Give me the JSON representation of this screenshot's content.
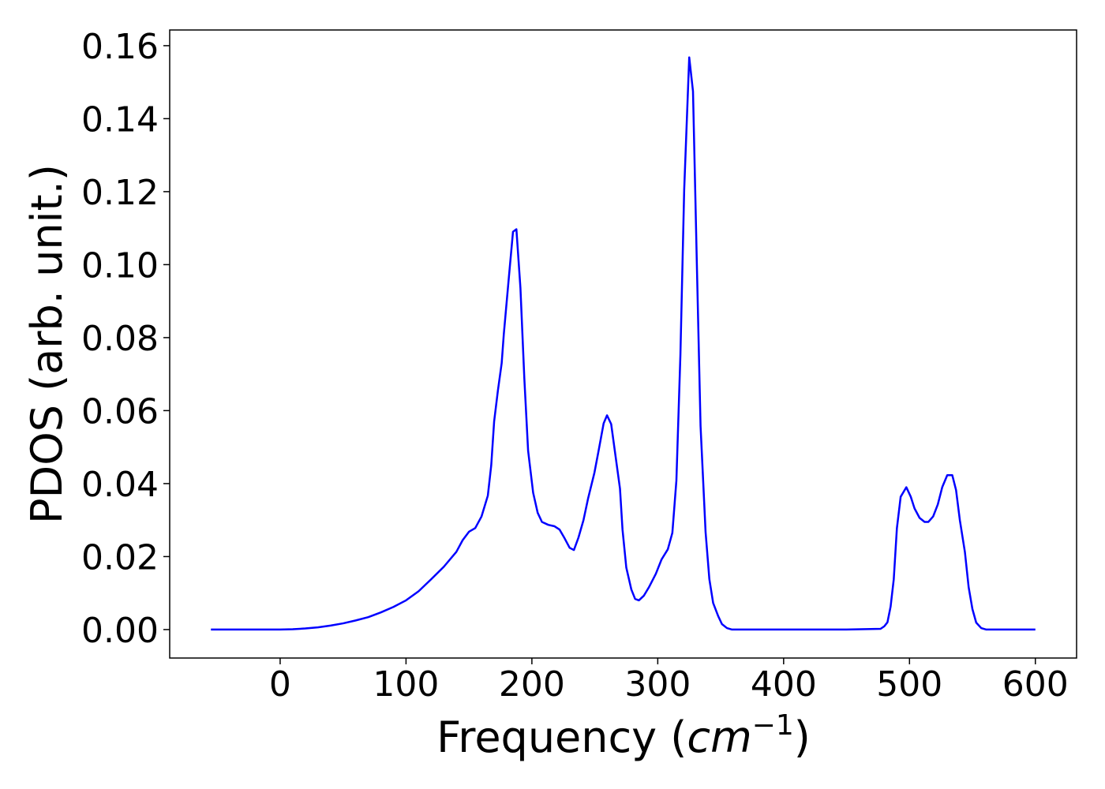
{
  "chart_data": {
    "type": "line",
    "xlabel": [
      "Frequency (",
      "cm",
      "−1",
      ")"
    ],
    "ylabel": "PDOS (arb. unit.)",
    "series": [
      {
        "name": "PDOS",
        "color": "#0000ff",
        "x": [
          -55,
          0,
          10,
          20,
          30,
          40,
          50,
          60,
          70,
          80,
          90,
          100,
          110,
          120,
          130,
          140,
          145,
          150,
          155,
          160,
          165,
          167.7,
          170,
          173,
          176,
          177.7,
          181.5,
          185,
          187.7,
          190.9,
          194,
          197,
          201,
          204.6,
          208,
          213,
          218,
          222,
          226,
          230,
          233.4,
          237,
          241,
          244.7,
          249.7,
          253,
          257,
          259.7,
          263,
          266,
          270,
          272,
          275,
          279,
          282,
          285,
          289,
          293,
          298.5,
          303,
          308,
          311.6,
          314.8,
          318,
          321,
          325,
          328,
          331,
          334,
          338,
          341,
          344,
          348,
          351,
          355,
          359,
          400,
          450,
          477,
          480,
          482.5,
          485,
          487.5,
          490,
          493,
          497.5,
          501,
          504,
          508,
          512,
          515,
          518.8,
          522.5,
          526,
          530,
          534,
          537,
          540,
          544,
          547,
          550,
          553,
          557,
          561,
          600
        ],
        "values": [
          0,
          0,
          0.0001,
          0.0003,
          0.0006,
          0.0011,
          0.0017,
          0.0025,
          0.0034,
          0.0047,
          0.0062,
          0.008,
          0.0105,
          0.0138,
          0.0172,
          0.0213,
          0.0245,
          0.0268,
          0.0278,
          0.031,
          0.0367,
          0.045,
          0.057,
          0.0655,
          0.073,
          0.081,
          0.0957,
          0.109,
          0.1097,
          0.0936,
          0.0688,
          0.049,
          0.0375,
          0.032,
          0.0295,
          0.0287,
          0.0283,
          0.0274,
          0.025,
          0.0224,
          0.0218,
          0.0252,
          0.03,
          0.036,
          0.043,
          0.049,
          0.0565,
          0.0587,
          0.0563,
          0.0487,
          0.0386,
          0.0274,
          0.017,
          0.011,
          0.0084,
          0.008,
          0.0093,
          0.0116,
          0.0153,
          0.0192,
          0.022,
          0.0265,
          0.0408,
          0.0753,
          0.1205,
          0.1568,
          0.1475,
          0.1011,
          0.0558,
          0.0267,
          0.0138,
          0.0073,
          0.0037,
          0.0015,
          0.0004,
          0,
          0,
          0,
          0.0002,
          0.0009,
          0.002,
          0.0063,
          0.0138,
          0.0278,
          0.0364,
          0.039,
          0.0364,
          0.0332,
          0.0306,
          0.0295,
          0.0295,
          0.031,
          0.0343,
          0.039,
          0.0423,
          0.0423,
          0.0382,
          0.03,
          0.0213,
          0.0116,
          0.0056,
          0.0019,
          0.0004,
          0,
          0
        ]
      }
    ],
    "xlim": [
      -87.75,
      632.75
    ],
    "xticks": [
      0,
      100,
      200,
      300,
      400,
      500,
      600
    ],
    "ylim": [
      -0.0078,
      0.1643
    ],
    "yticks": [
      {
        "value": 0,
        "label": "0.00"
      },
      0.02,
      0.04,
      0.06,
      0.08,
      {
        "value": 0.1,
        "label": "0.10"
      },
      0.12,
      0.14,
      0.16
    ]
  }
}
